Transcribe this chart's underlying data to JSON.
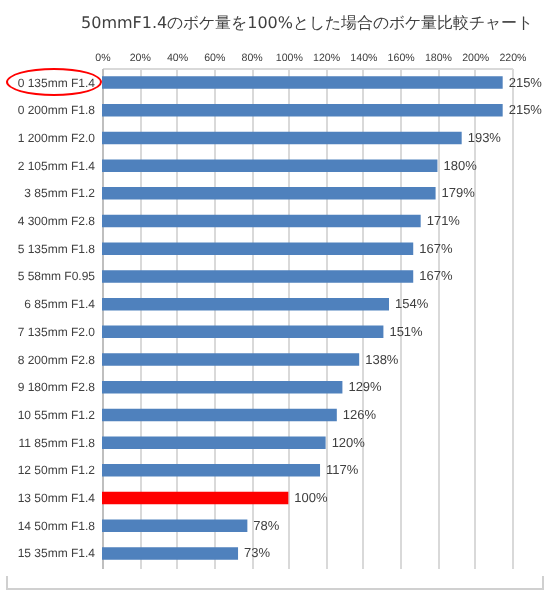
{
  "chart_data": {
    "type": "bar",
    "orientation": "horizontal",
    "title": "50mmF1.4のボケ量を100%とした場合のボケ量比較チャート",
    "categories": [
      "0  135mm F1.4",
      "0  200mm F1.8",
      "1  200mm F2.0",
      "2  105mm F1.4",
      "3  85mm F1.2",
      "4  300mm F2.8",
      "5  135mm F1.8",
      "5  58mm F0.95",
      "6  85mm F1.4",
      "7  135mm F2.0",
      "8  200mm F2.8",
      "9  180mm F2.8",
      "10  55mm F1.2",
      "11  85mm F1.8",
      "12  50mm F1.2",
      "13  50mm F1.4",
      "14  50mm F1.8",
      "15  35mm F1.4"
    ],
    "values": [
      215,
      215,
      193,
      180,
      179,
      171,
      167,
      167,
      154,
      151,
      138,
      129,
      126,
      120,
      117,
      100,
      78,
      73
    ],
    "colors": [
      "#4f81bd",
      "#4f81bd",
      "#4f81bd",
      "#4f81bd",
      "#4f81bd",
      "#4f81bd",
      "#4f81bd",
      "#4f81bd",
      "#4f81bd",
      "#4f81bd",
      "#4f81bd",
      "#4f81bd",
      "#4f81bd",
      "#4f81bd",
      "#4f81bd",
      "#ff0000",
      "#4f81bd",
      "#4f81bd"
    ],
    "value_labels": [
      "215%",
      "215%",
      "193%",
      "180%",
      "179%",
      "171%",
      "167%",
      "167%",
      "154%",
      "151%",
      "138%",
      "129%",
      "126%",
      "120%",
      "117%",
      "100%",
      "78%",
      "73%"
    ],
    "xlim": [
      0,
      220
    ],
    "xticks": [
      {
        "value": 0,
        "label": "0%"
      },
      {
        "value": 20,
        "label": "20%"
      },
      {
        "value": 40,
        "label": "40%"
      },
      {
        "value": 60,
        "label": "60%"
      },
      {
        "value": 80,
        "label": "80%"
      },
      {
        "value": 100,
        "label": "100%"
      },
      {
        "value": 120,
        "label": "120%"
      },
      {
        "value": 140,
        "label": "140%"
      },
      {
        "value": 160,
        "label": "160%"
      },
      {
        "value": 180,
        "label": "180%"
      },
      {
        "value": 200,
        "label": "200%"
      },
      {
        "value": 220,
        "label": "220%"
      }
    ],
    "grid": "x"
  }
}
